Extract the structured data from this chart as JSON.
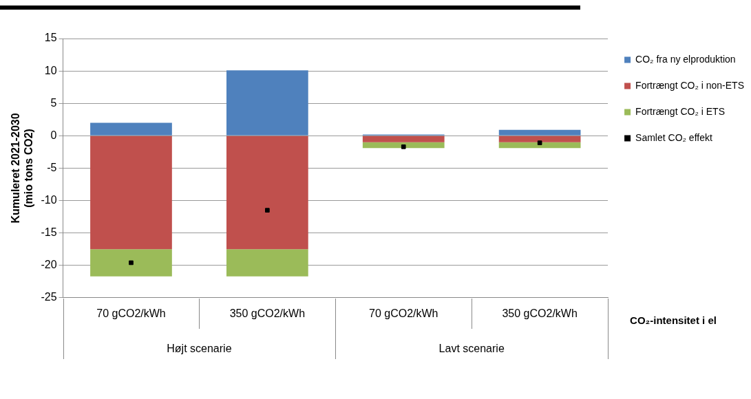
{
  "chart_data": {
    "type": "bar",
    "stacked": true,
    "categories": [
      "70 gCO2/kWh",
      "350 gCO2/kWh",
      "70 gCO2/kWh",
      "350 gCO2/kWh"
    ],
    "series": [
      {
        "name": "CO₂ fra ny elproduktion",
        "color": "#4f81bd",
        "values": [
          2.0,
          10.1,
          0.2,
          0.9
        ]
      },
      {
        "name": "Fortrængt CO₂ i non-ETS",
        "color": "#c0504d",
        "values": [
          -17.5,
          -17.5,
          -1.0,
          -1.0
        ]
      },
      {
        "name": "Fortrængt CO₂ i ETS",
        "color": "#9bbb59",
        "values": [
          -4.2,
          -4.2,
          -0.9,
          -0.9
        ]
      },
      {
        "name": "Samlet CO₂ effekt",
        "color": "#000000",
        "type": "scatter",
        "values": [
          -19.6,
          -11.5,
          -1.7,
          -1.1
        ]
      }
    ],
    "ylabel": "Kumuleret 2021-2030\n(mio tons CO2)",
    "xlabel": "CO₂-intensitet i el",
    "annotations": [
      "Højt scenarie",
      "Lavt scenarie"
    ],
    "ylim": [
      -25,
      15
    ],
    "yticks": [
      -25,
      -20,
      -15,
      -10,
      -5,
      0,
      5,
      10,
      15
    ],
    "grid": "y",
    "legend": "right",
    "marker": "square"
  }
}
